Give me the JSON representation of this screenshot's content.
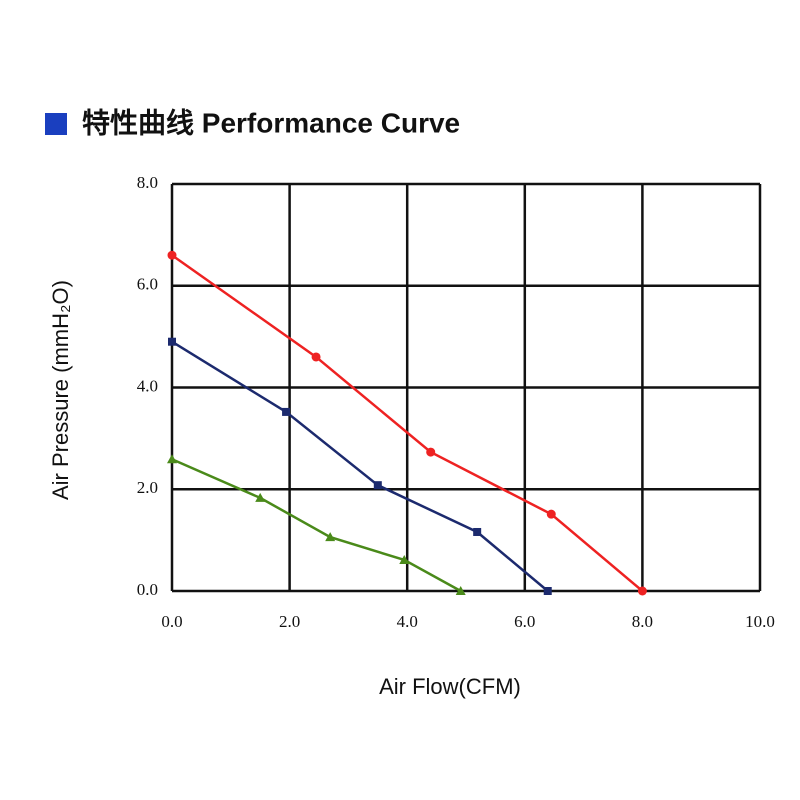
{
  "chart_data": {
    "type": "line",
    "title": "特性曲线 Performance Curve",
    "x_label": "Air Flow(CFM)",
    "y_label": "Air Pressure (mmH₂O)",
    "xlim": [
      0,
      10
    ],
    "ylim": [
      0,
      8
    ],
    "xticks": [
      {
        "value": 0,
        "label": "0.0"
      },
      {
        "value": 2,
        "label": "2.0"
      },
      {
        "value": 4,
        "label": "4.0"
      },
      {
        "value": 6,
        "label": "6.0"
      },
      {
        "value": 8,
        "label": "8.0"
      },
      {
        "value": 10,
        "label": "10.0"
      }
    ],
    "yticks": [
      {
        "value": 0,
        "label": "0.0"
      },
      {
        "value": 2,
        "label": "2.0"
      },
      {
        "value": 4,
        "label": "4.0"
      },
      {
        "value": 6,
        "label": "6.0"
      },
      {
        "value": 8,
        "label": "8.0"
      }
    ],
    "grid": true,
    "series": [
      {
        "color": "#ee2222",
        "marker": "circle",
        "x": [
          0,
          2.45,
          4.4,
          6.45,
          8.0
        ],
        "values": [
          6.6,
          4.6,
          2.73,
          1.51,
          0
        ]
      },
      {
        "color": "#1c2a6e",
        "marker": "square",
        "x": [
          0,
          1.94,
          3.5,
          5.19,
          6.39
        ],
        "values": [
          4.9,
          3.52,
          2.08,
          1.16,
          0
        ]
      },
      {
        "color": "#4a8a1a",
        "marker": "triangle",
        "x": [
          0,
          1.5,
          2.69,
          3.95,
          4.91
        ],
        "values": [
          2.59,
          1.83,
          1.06,
          0.61,
          0
        ]
      }
    ]
  }
}
